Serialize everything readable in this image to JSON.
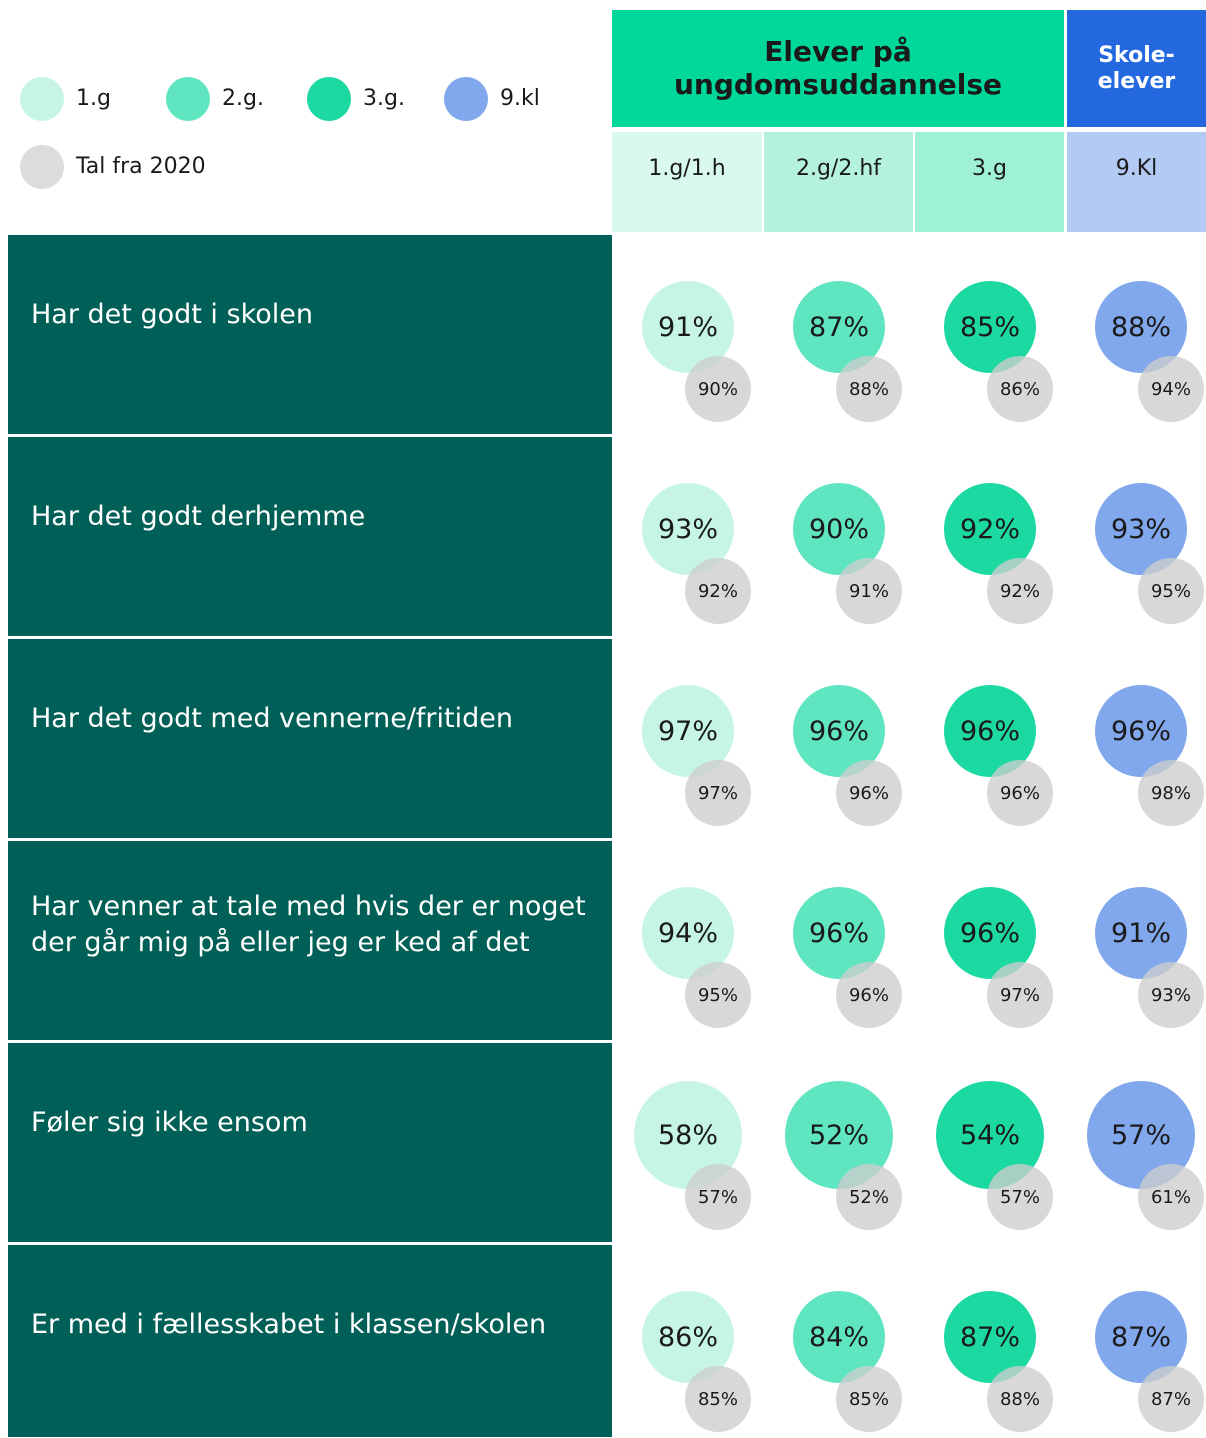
{
  "legend": [
    "1.g",
    "2.g.",
    "3.g.",
    "9.kl",
    "Tal fra 2020"
  ],
  "header": {
    "groups": [
      [
        "Elever på",
        "ungdomsuddannelse"
      ],
      [
        "Skole-",
        "elever"
      ]
    ],
    "columns": [
      "1.g/1.h",
      "2.g/2.hf",
      "3.g",
      "9.Kl"
    ]
  },
  "rows": [
    {
      "label": [
        "Har det godt i skolen"
      ],
      "values": [
        "91%",
        "87%",
        "85%",
        "88%"
      ],
      "values_2020": [
        "90%",
        "88%",
        "86%",
        "94%"
      ]
    },
    {
      "label": [
        "Har det godt derhjemme"
      ],
      "values": [
        "93%",
        "90%",
        "92%",
        "93%"
      ],
      "values_2020": [
        "92%",
        "91%",
        "92%",
        "95%"
      ]
    },
    {
      "label": [
        "Har det godt med vennerne/fritiden"
      ],
      "values": [
        "97%",
        "96%",
        "96%",
        "96%"
      ],
      "values_2020": [
        "97%",
        "96%",
        "96%",
        "98%"
      ]
    },
    {
      "label": [
        "Har venner at tale med hvis der er noget",
        "der går mig på eller jeg er ked af det"
      ],
      "values": [
        "94%",
        "96%",
        "96%",
        "91%"
      ],
      "values_2020": [
        "95%",
        "96%",
        "97%",
        "93%"
      ]
    },
    {
      "label": [
        "Føler sig ikke ensom"
      ],
      "values": [
        "58%",
        "52%",
        "54%",
        "57%"
      ],
      "values_2020": [
        "57%",
        "52%",
        "57%",
        "61%"
      ]
    },
    {
      "label": [
        "Er med i fællesskabet i klassen/skolen"
      ],
      "values": [
        "86%",
        "84%",
        "87%",
        "87%"
      ],
      "values_2020": [
        "85%",
        "85%",
        "88%",
        "87%"
      ]
    }
  ]
}
